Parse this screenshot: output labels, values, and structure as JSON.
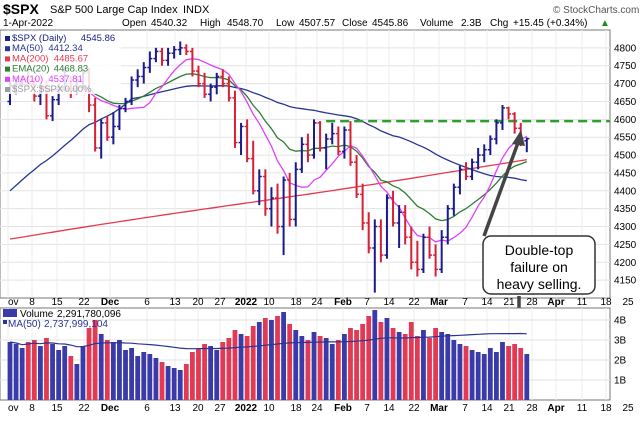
{
  "header": {
    "symbol": "$SPX",
    "name": "S&P 500 Large Cap Index",
    "exchange": "INDX",
    "date": "1-Apr-2022",
    "open_label": "Open",
    "open": "4540.32",
    "high_label": "High",
    "high": "4548.70",
    "low_label": "Low",
    "low": "4507.57",
    "close_label": "Close",
    "close": "4545.86",
    "volume_label": "Volume",
    "volume": "2.3B",
    "chg_label": "Chg",
    "chg": "+15.45 (+0.34%)",
    "chg_arrow": "▲",
    "brand": "© StockCharts.com"
  },
  "legend": [
    {
      "label": "$SPX (Daily)",
      "value": "4545.86",
      "color": "#1a237e"
    },
    {
      "label": "MA(50)",
      "value": "4412.34",
      "color": "#283593"
    },
    {
      "label": "MA(200)",
      "value": "4485.67",
      "color": "#e53950"
    },
    {
      "label": "EMA(20)",
      "value": "4468.83",
      "color": "#2e7d32"
    },
    {
      "label": "MA(10)",
      "value": "4537.81",
      "color": "#e040fb"
    },
    {
      "label": "$SPX:$SPX",
      "value": "0.00%",
      "color": "#9e9e9e"
    }
  ],
  "annotation": {
    "line1": "Double-top",
    "line2": "failure on",
    "line3": "heavy selling."
  },
  "volume_legend": {
    "vol_label": "Volume",
    "vol_value": "2,291,780,096",
    "ma_label": "MA(50)",
    "ma_value": "2,737,999,104"
  },
  "colors": {
    "up": "#1a1a8c",
    "down": "#d62035",
    "ma50": "#283593",
    "ma200": "#e53950",
    "ema20": "#2e7d32",
    "ma10": "#e040fb",
    "resistance": "#2e9e2e",
    "vol_up": "#3a3aa8",
    "vol_down": "#e23a55"
  },
  "chart_data": {
    "type": "candlestick",
    "price_ylim": [
      4100,
      4850
    ],
    "price_yticks": [
      "4150",
      "4200",
      "4250",
      "4300",
      "4350",
      "4400",
      "4450",
      "4500",
      "4550",
      "4600",
      "4650",
      "4700",
      "4750",
      "4800"
    ],
    "volume_ylim": [
      0,
      4.6
    ],
    "volume_yticks": [
      "1B",
      "2B",
      "3B",
      "4B"
    ],
    "x_ticks": [
      "ov",
      "8",
      "15",
      "22",
      "Dec",
      "6",
      "13",
      "20",
      "27",
      "2022",
      "10",
      "18",
      "24",
      "Feb",
      "7",
      "14",
      "22",
      "Mar",
      "7",
      "14",
      "21",
      "28",
      "Apr",
      "11",
      "18",
      "25"
    ],
    "resistance_level": 4595,
    "bars": [
      {
        "o": 4650,
        "h": 4705,
        "l": 4640,
        "c": 4695,
        "v": 2.9
      },
      {
        "o": 4690,
        "h": 4720,
        "l": 4670,
        "c": 4705,
        "v": 2.8
      },
      {
        "o": 4700,
        "h": 4720,
        "l": 4690,
        "c": 4712,
        "v": 2.6
      },
      {
        "o": 4712,
        "h": 4740,
        "l": 4690,
        "c": 4700,
        "v": 2.9
      },
      {
        "o": 4700,
        "h": 4715,
        "l": 4650,
        "c": 4665,
        "v": 3.0
      },
      {
        "o": 4665,
        "h": 4700,
        "l": 4640,
        "c": 4690,
        "v": 2.7
      },
      {
        "o": 4690,
        "h": 4710,
        "l": 4600,
        "c": 4610,
        "v": 3.1
      },
      {
        "o": 4610,
        "h": 4665,
        "l": 4595,
        "c": 4655,
        "v": 2.8
      },
      {
        "o": 4655,
        "h": 4700,
        "l": 4640,
        "c": 4690,
        "v": 2.5
      },
      {
        "o": 4690,
        "h": 4745,
        "l": 4680,
        "c": 4700,
        "v": 2.7
      },
      {
        "o": 4700,
        "h": 4720,
        "l": 4660,
        "c": 4680,
        "v": 2.2
      },
      {
        "o": 4680,
        "h": 4720,
        "l": 4670,
        "c": 4710,
        "v": 1.8
      },
      {
        "o": 4710,
        "h": 4740,
        "l": 4690,
        "c": 4730,
        "v": 2.7
      },
      {
        "o": 4730,
        "h": 4745,
        "l": 4620,
        "c": 4640,
        "v": 3.6
      },
      {
        "o": 4640,
        "h": 4660,
        "l": 4510,
        "c": 4520,
        "v": 4.0
      },
      {
        "o": 4520,
        "h": 4600,
        "l": 4490,
        "c": 4590,
        "v": 3.3
      },
      {
        "o": 4590,
        "h": 4610,
        "l": 4540,
        "c": 4550,
        "v": 3.0
      },
      {
        "o": 4550,
        "h": 4620,
        "l": 4530,
        "c": 4580,
        "v": 2.9
      },
      {
        "o": 4580,
        "h": 4640,
        "l": 4570,
        "c": 4630,
        "v": 3.0
      },
      {
        "o": 4630,
        "h": 4660,
        "l": 4620,
        "c": 4650,
        "v": 2.5
      },
      {
        "o": 4650,
        "h": 4720,
        "l": 4640,
        "c": 4710,
        "v": 2.6
      },
      {
        "o": 4710,
        "h": 4740,
        "l": 4690,
        "c": 4720,
        "v": 2.2
      },
      {
        "o": 4720,
        "h": 4760,
        "l": 4700,
        "c": 4745,
        "v": 2.4
      },
      {
        "o": 4745,
        "h": 4790,
        "l": 4730,
        "c": 4770,
        "v": 2.3
      },
      {
        "o": 4770,
        "h": 4800,
        "l": 4760,
        "c": 4790,
        "v": 2.1
      },
      {
        "o": 4790,
        "h": 4800,
        "l": 4750,
        "c": 4765,
        "v": 1.9
      },
      {
        "o": 4765,
        "h": 4800,
        "l": 4750,
        "c": 4785,
        "v": 1.7
      },
      {
        "o": 4785,
        "h": 4805,
        "l": 4770,
        "c": 4795,
        "v": 1.6
      },
      {
        "o": 4795,
        "h": 4818,
        "l": 4780,
        "c": 4800,
        "v": 1.5
      },
      {
        "o": 4800,
        "h": 4810,
        "l": 4780,
        "c": 4790,
        "v": 1.8
      },
      {
        "o": 4790,
        "h": 4800,
        "l": 4720,
        "c": 4735,
        "v": 2.4
      },
      {
        "o": 4735,
        "h": 4750,
        "l": 4690,
        "c": 4700,
        "v": 2.6
      },
      {
        "o": 4700,
        "h": 4730,
        "l": 4660,
        "c": 4670,
        "v": 2.8
      },
      {
        "o": 4670,
        "h": 4700,
        "l": 4650,
        "c": 4690,
        "v": 2.7
      },
      {
        "o": 4690,
        "h": 4730,
        "l": 4670,
        "c": 4720,
        "v": 2.5
      },
      {
        "o": 4720,
        "h": 4740,
        "l": 4690,
        "c": 4700,
        "v": 2.9
      },
      {
        "o": 4700,
        "h": 4720,
        "l": 4650,
        "c": 4660,
        "v": 3.1
      },
      {
        "o": 4660,
        "h": 4680,
        "l": 4520,
        "c": 4535,
        "v": 3.5
      },
      {
        "o": 4535,
        "h": 4590,
        "l": 4500,
        "c": 4580,
        "v": 3.3
      },
      {
        "o": 4580,
        "h": 4600,
        "l": 4480,
        "c": 4490,
        "v": 3.2
      },
      {
        "o": 4490,
        "h": 4540,
        "l": 4390,
        "c": 4400,
        "v": 3.7
      },
      {
        "o": 4400,
        "h": 4460,
        "l": 4360,
        "c": 4440,
        "v": 3.9
      },
      {
        "o": 4440,
        "h": 4460,
        "l": 4330,
        "c": 4350,
        "v": 4.1
      },
      {
        "o": 4350,
        "h": 4410,
        "l": 4300,
        "c": 4380,
        "v": 4.0
      },
      {
        "o": 4380,
        "h": 4420,
        "l": 4280,
        "c": 4300,
        "v": 4.2
      },
      {
        "o": 4300,
        "h": 4440,
        "l": 4220,
        "c": 4430,
        "v": 4.4
      },
      {
        "o": 4430,
        "h": 4450,
        "l": 4300,
        "c": 4320,
        "v": 3.8
      },
      {
        "o": 4320,
        "h": 4480,
        "l": 4300,
        "c": 4460,
        "v": 3.5
      },
      {
        "o": 4460,
        "h": 4550,
        "l": 4450,
        "c": 4530,
        "v": 3.2
      },
      {
        "o": 4530,
        "h": 4560,
        "l": 4480,
        "c": 4500,
        "v": 3.0
      },
      {
        "o": 4500,
        "h": 4600,
        "l": 4490,
        "c": 4590,
        "v": 3.4
      },
      {
        "o": 4590,
        "h": 4595,
        "l": 4510,
        "c": 4520,
        "v": 3.2
      },
      {
        "o": 4520,
        "h": 4560,
        "l": 4460,
        "c": 4545,
        "v": 3.1
      },
      {
        "o": 4545,
        "h": 4590,
        "l": 4530,
        "c": 4560,
        "v": 2.8
      },
      {
        "o": 4560,
        "h": 4580,
        "l": 4500,
        "c": 4510,
        "v": 3.0
      },
      {
        "o": 4510,
        "h": 4580,
        "l": 4490,
        "c": 4570,
        "v": 3.3
      },
      {
        "o": 4570,
        "h": 4595,
        "l": 4470,
        "c": 4480,
        "v": 3.6
      },
      {
        "o": 4480,
        "h": 4500,
        "l": 4380,
        "c": 4390,
        "v": 3.5
      },
      {
        "o": 4390,
        "h": 4420,
        "l": 4290,
        "c": 4310,
        "v": 3.8
      },
      {
        "o": 4310,
        "h": 4340,
        "l": 4225,
        "c": 4240,
        "v": 4.2
      },
      {
        "o": 4240,
        "h": 4320,
        "l": 4115,
        "c": 4300,
        "v": 4.5
      },
      {
        "o": 4300,
        "h": 4320,
        "l": 4200,
        "c": 4220,
        "v": 3.9
      },
      {
        "o": 4220,
        "h": 4390,
        "l": 4210,
        "c": 4380,
        "v": 4.1
      },
      {
        "o": 4380,
        "h": 4400,
        "l": 4300,
        "c": 4310,
        "v": 3.6
      },
      {
        "o": 4310,
        "h": 4360,
        "l": 4240,
        "c": 4340,
        "v": 3.4
      },
      {
        "o": 4340,
        "h": 4360,
        "l": 4250,
        "c": 4270,
        "v": 3.3
      },
      {
        "o": 4270,
        "h": 4300,
        "l": 4180,
        "c": 4200,
        "v": 3.9
      },
      {
        "o": 4200,
        "h": 4260,
        "l": 4160,
        "c": 4180,
        "v": 3.2
      },
      {
        "o": 4180,
        "h": 4280,
        "l": 4170,
        "c": 4270,
        "v": 3.5
      },
      {
        "o": 4270,
        "h": 4300,
        "l": 4210,
        "c": 4220,
        "v": 3.1
      },
      {
        "o": 4220,
        "h": 4250,
        "l": 4160,
        "c": 4180,
        "v": 3.6
      },
      {
        "o": 4180,
        "h": 4290,
        "l": 4170,
        "c": 4270,
        "v": 3.4
      },
      {
        "o": 4270,
        "h": 4360,
        "l": 4250,
        "c": 4350,
        "v": 3.3
      },
      {
        "o": 4350,
        "h": 4420,
        "l": 4330,
        "c": 4410,
        "v": 3.0
      },
      {
        "o": 4410,
        "h": 4470,
        "l": 4390,
        "c": 4460,
        "v": 2.8
      },
      {
        "o": 4460,
        "h": 4480,
        "l": 4430,
        "c": 4440,
        "v": 2.7
      },
      {
        "o": 4440,
        "h": 4490,
        "l": 4430,
        "c": 4480,
        "v": 2.5
      },
      {
        "o": 4480,
        "h": 4520,
        "l": 4460,
        "c": 4500,
        "v": 2.4
      },
      {
        "o": 4500,
        "h": 4530,
        "l": 4480,
        "c": 4515,
        "v": 2.3
      },
      {
        "o": 4515,
        "h": 4555,
        "l": 4500,
        "c": 4545,
        "v": 2.6
      },
      {
        "o": 4545,
        "h": 4600,
        "l": 4530,
        "c": 4590,
        "v": 2.4
      },
      {
        "o": 4590,
        "h": 4640,
        "l": 4570,
        "c": 4632,
        "v": 2.9
      },
      {
        "o": 4632,
        "h": 4635,
        "l": 4600,
        "c": 4615,
        "v": 2.7
      },
      {
        "o": 4615,
        "h": 4620,
        "l": 4560,
        "c": 4575,
        "v": 2.8
      },
      {
        "o": 4575,
        "h": 4590,
        "l": 4525,
        "c": 4530,
        "v": 2.6
      },
      {
        "o": 4540,
        "h": 4549,
        "l": 4508,
        "c": 4546,
        "v": 2.3
      }
    ]
  }
}
